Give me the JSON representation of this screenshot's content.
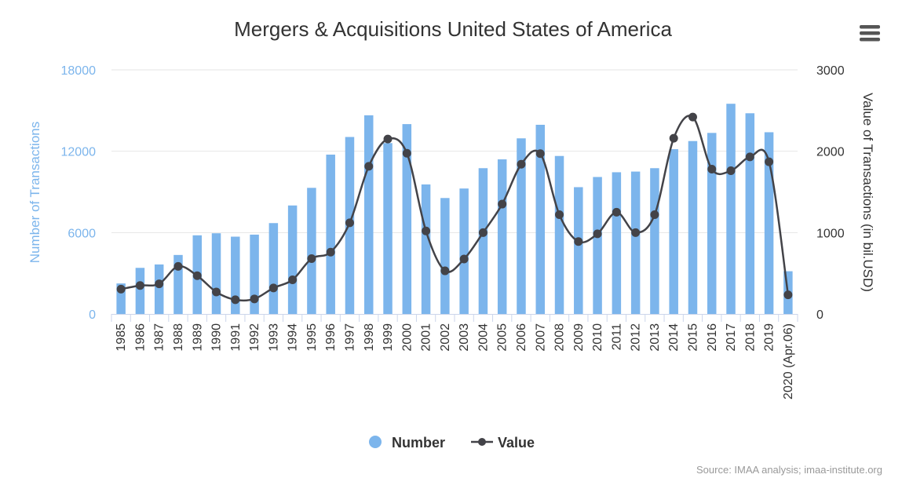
{
  "chart_data": {
    "type": "bar",
    "title": "Mergers & Acquisitions United States of America",
    "categories": [
      "1985",
      "1986",
      "1987",
      "1988",
      "1989",
      "1990",
      "1991",
      "1992",
      "1993",
      "1994",
      "1995",
      "1996",
      "1997",
      "1998",
      "1999",
      "2000",
      "2001",
      "2002",
      "2003",
      "2004",
      "2005",
      "2006",
      "2007",
      "2008",
      "2009",
      "2010",
      "2011",
      "2012",
      "2013",
      "2014",
      "2015",
      "2016",
      "2017",
      "2018",
      "2019",
      "2020 (Apr.06)"
    ],
    "series": [
      {
        "name": "Number",
        "type": "bar",
        "axis": "left",
        "color": "#7cb5ec",
        "values": [
          2250,
          3400,
          3650,
          4350,
          5800,
          5950,
          5700,
          5850,
          6700,
          8000,
          9300,
          11750,
          13050,
          14650,
          12600,
          14000,
          9550,
          8550,
          9250,
          10750,
          11400,
          12950,
          13950,
          11650,
          9350,
          10100,
          10450,
          10500,
          10750,
          12150,
          12750,
          13350,
          15500,
          14800,
          13400,
          3150
        ]
      },
      {
        "name": "Value",
        "type": "spline",
        "axis": "right",
        "color": "#434348",
        "values": [
          305,
          350,
          370,
          585,
          470,
          270,
          175,
          185,
          320,
          420,
          680,
          760,
          1120,
          1815,
          2150,
          1975,
          1020,
          530,
          675,
          1000,
          1350,
          1840,
          1970,
          1220,
          890,
          985,
          1250,
          1000,
          1220,
          2160,
          2420,
          1780,
          1760,
          1930,
          1870,
          235
        ]
      }
    ],
    "yAxisLeft": {
      "title": "Number of Transactions",
      "ticks": [
        "0",
        "6000",
        "12000",
        "18000"
      ],
      "min": 0,
      "max": 18000
    },
    "yAxisRight": {
      "title": "Value of Transactions (in bil.USD)",
      "ticks": [
        "0",
        "1000",
        "2000",
        "3000"
      ],
      "min": 0,
      "max": 3000
    },
    "legend": {
      "position": "bottom-center",
      "items": [
        {
          "label": "Number",
          "symbol": "circle",
          "color": "#7cb5ec"
        },
        {
          "label": "Value",
          "symbol": "line-marker",
          "color": "#434348"
        }
      ]
    },
    "grid": true,
    "credits": "Source: IMAA analysis; imaa-institute.org"
  },
  "menu": {
    "icon": "hamburger-icon"
  }
}
